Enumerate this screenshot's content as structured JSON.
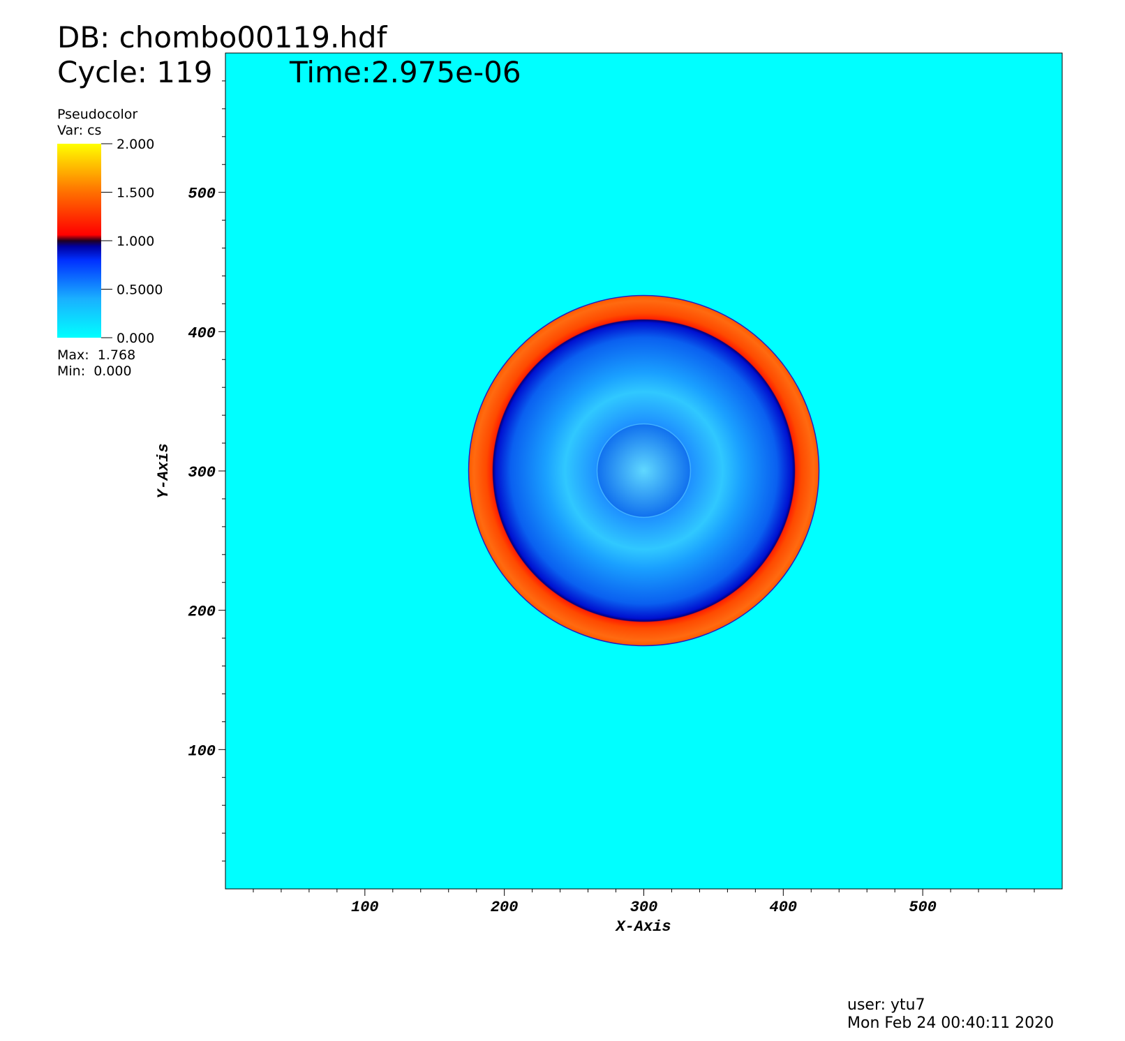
{
  "chart_data": {
    "type": "pseudocolor",
    "title": "DB: chombo00119.hdf",
    "cycle": "Cycle: 119",
    "time": "Time:2.975e-06",
    "legend_title": "Pseudocolor",
    "legend_var": "Var: cs",
    "legend_max": "Max:  1.768",
    "legend_min": "Min:  0.000",
    "x_label": "X-Axis",
    "y_label": "Y-Axis",
    "xlim": [
      0,
      600
    ],
    "ylim": [
      0,
      600
    ],
    "xticks": [
      100,
      200,
      300,
      400,
      500
    ],
    "yticks": [
      100,
      200,
      300,
      400,
      500
    ],
    "xminorticks": [
      20,
      40,
      60,
      80,
      120,
      140,
      160,
      180,
      220,
      240,
      260,
      280,
      320,
      340,
      360,
      380,
      420,
      440,
      460,
      480,
      520,
      540,
      560,
      580
    ],
    "yminorticks": [
      20,
      40,
      60,
      80,
      120,
      140,
      160,
      180,
      220,
      240,
      260,
      280,
      320,
      340,
      360,
      380,
      420,
      440,
      460,
      480,
      520,
      540,
      560,
      580
    ],
    "colorbar_lim": [
      0,
      2
    ],
    "colorbar_ticks": [
      {
        "value": 2,
        "label": "2.000"
      },
      {
        "value": 1.5,
        "label": "1.500"
      },
      {
        "value": 1,
        "label": "1.000"
      },
      {
        "value": 0.5,
        "label": "0.5000"
      },
      {
        "value": 0,
        "label": "0.000"
      }
    ],
    "background_color": "#00ffff",
    "footer_user": "user: ytu7",
    "footer_date": "Mon Feb 24 00:40:11 2020"
  }
}
